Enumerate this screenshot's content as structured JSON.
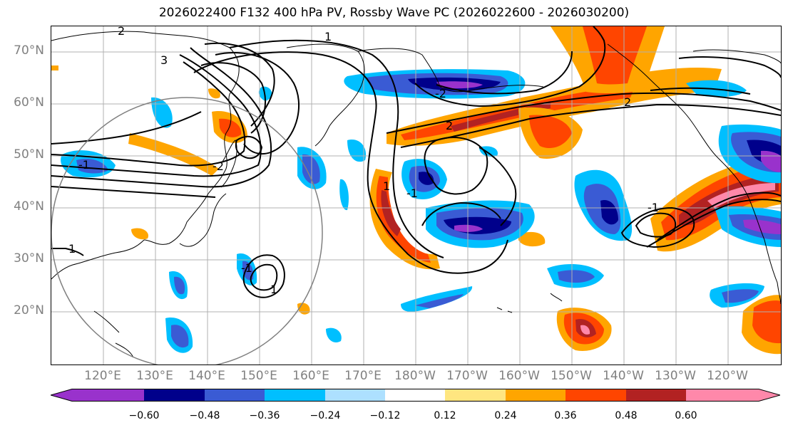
{
  "title": "2026022400 F132 400 hPa PV, Rossby Wave PC (2026022600 - 2026030200)",
  "lat_labels": [
    "70°N",
    "60°N",
    "50°N",
    "40°N",
    "30°N",
    "20°N"
  ],
  "lon_labels": [
    "120°E",
    "130°E",
    "140°E",
    "150°E",
    "160°E",
    "170°E",
    "180°W",
    "170°W",
    "160°W",
    "150°W",
    "140°W",
    "130°W",
    "120°W"
  ],
  "contour_labels": [
    "1",
    "2",
    "3",
    "-1",
    "-2",
    "2",
    "-2",
    "1",
    "-1",
    "-1",
    "1",
    "2",
    "-1",
    "1"
  ],
  "colorbar": {
    "ticks": [
      "−0.60",
      "−0.48",
      "−0.36",
      "−0.24",
      "−0.12",
      "0.12",
      "0.24",
      "0.36",
      "0.48",
      "0.60"
    ],
    "colors": [
      "#9932CC",
      "#00008B",
      "#3A5BD4",
      "#00BFFF",
      "#ADE0FF",
      "#FFFFFF",
      "#FFE680",
      "#FFA500",
      "#FF4500",
      "#B22222",
      "#FF88AA"
    ]
  }
}
